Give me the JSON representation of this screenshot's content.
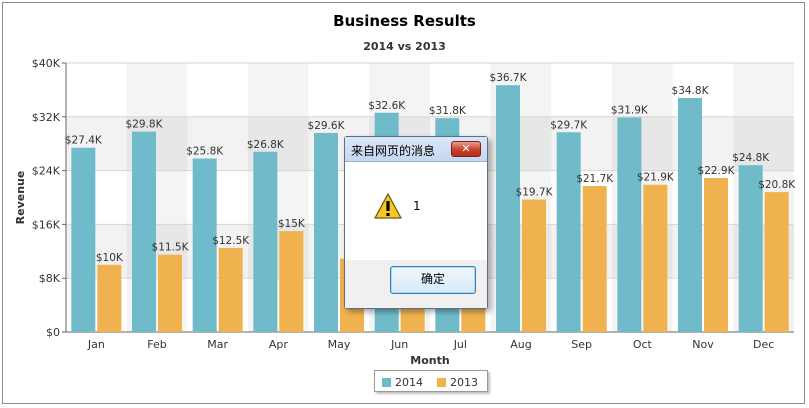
{
  "chart_data": {
    "type": "bar",
    "title": "Business Results",
    "subtitle": "2014 vs 2013",
    "xlabel": "Month",
    "ylabel": "Revenue",
    "categories": [
      "Jan",
      "Feb",
      "Mar",
      "Apr",
      "May",
      "Jun",
      "Jul",
      "Aug",
      "Sep",
      "Oct",
      "Nov",
      "Dec"
    ],
    "ylim": [
      0,
      40000
    ],
    "yticks": [
      "$0",
      "$8K",
      "$16K",
      "$24K",
      "$32K",
      "$40K"
    ],
    "ytick_values": [
      0,
      8000,
      16000,
      24000,
      32000,
      40000
    ],
    "grid": true,
    "legend_position": "bottom-center",
    "series": [
      {
        "name": "2014",
        "color": "#6fbbc9",
        "values": [
          27400,
          29800,
          25800,
          26800,
          29600,
          32600,
          31800,
          36700,
          29700,
          31900,
          34800,
          24800
        ],
        "labels": [
          "$27.4K",
          "$29.8K",
          "$25.8K",
          "$26.8K",
          "$29.6K",
          "$32.6K",
          "$31.8K",
          "$36.7K",
          "$29.7K",
          "$31.9K",
          "$34.8K",
          "$24.8K"
        ]
      },
      {
        "name": "2013",
        "color": "#f0b24e",
        "values": [
          10000,
          11500,
          12500,
          15000,
          10900,
          15500,
          13000,
          19700,
          21700,
          21900,
          22900,
          20800
        ],
        "labels": [
          "$10K",
          "$11.5K",
          "$12.5K",
          "$15K",
          "",
          "",
          "",
          "$19.7K",
          "$21.7K",
          "$21.9K",
          "$22.9K",
          "$20.8K"
        ]
      }
    ]
  },
  "partial_labels": {
    "may_2013_fragment": "$",
    "jul_2013_fragment": "K"
  },
  "dialog": {
    "title": "来自网页的消息",
    "message": "1",
    "ok_label": "确定",
    "close_glyph": "✕",
    "icon": "warning-icon"
  }
}
